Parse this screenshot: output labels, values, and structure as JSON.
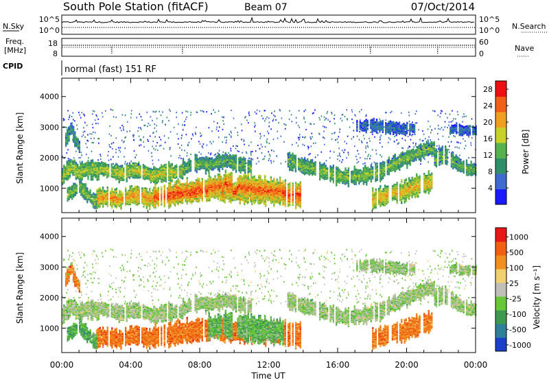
{
  "header": {
    "title": "South Pole Station (fitACF)",
    "beam": "Beam 07",
    "date": "07/Oct/2014"
  },
  "status_panels": {
    "nsky_label": "N.Sky",
    "nsearch_label": "N.Search",
    "freq_label_line1": "Freq.",
    "freq_label_line2": "[MHz]",
    "nave_label": "Nave",
    "cpid_label": "CPID",
    "cpid_text": "normal (fast) 151 RF",
    "noise_left_ticks": [
      "10^5",
      "10^0"
    ],
    "noise_right_ticks": [
      "10^5",
      "10^0"
    ],
    "freq_left_ticks": [
      "18",
      "8"
    ],
    "nave_right_ticks": [
      "60",
      "0"
    ]
  },
  "chart_data": [
    {
      "type": "heatmap",
      "name": "power",
      "ylabel": "Slant Range [km]",
      "xlabel": "Time UT",
      "xlim": [
        0,
        24
      ],
      "ylim": [
        200,
        4600
      ],
      "x_tick_labels": [
        "00:00",
        "04:00",
        "08:00",
        "12:00",
        "16:00",
        "20:00",
        "00:00"
      ],
      "y_tick_labels": [
        "1000",
        "2000",
        "3000",
        "4000"
      ],
      "colorbar": {
        "label": "Power [dB]",
        "tick_labels": [
          "4",
          "8",
          "12",
          "16",
          "20",
          "24",
          "28"
        ],
        "range": [
          0,
          30
        ],
        "colors": [
          "#1a1aff",
          "#3d6bd0",
          "#2f8f6a",
          "#55b24c",
          "#c8d02a",
          "#f0a020",
          "#f06018",
          "#ee1010"
        ]
      }
    },
    {
      "type": "heatmap",
      "name": "velocity",
      "ylabel": "Slant Range [km]",
      "xlabel": "Time UT",
      "xlim": [
        0,
        24
      ],
      "ylim": [
        200,
        4600
      ],
      "x_tick_labels": [
        "00:00",
        "04:00",
        "08:00",
        "12:00",
        "16:00",
        "20:00",
        "00:00"
      ],
      "y_tick_labels": [
        "1000",
        "2000",
        "3000",
        "4000"
      ],
      "colorbar": {
        "label": "Velocity [m s⁻¹]",
        "tick_labels": [
          "1000",
          "500",
          "100",
          "25",
          "-25",
          "-100",
          "-500",
          "-1000"
        ],
        "colors": [
          "#1a3fc8",
          "#2e7f9a",
          "#3c9a50",
          "#66c838",
          "#c0c0b8",
          "#f0d070",
          "#f09020",
          "#f06010",
          "#e81818"
        ]
      }
    }
  ],
  "echo_bands": [
    {
      "t0": 0.0,
      "t1": 2.5,
      "r": [
        1450,
        1750,
        1550,
        1650,
        1600,
        1700
      ],
      "w": 260,
      "pow": 0.55,
      "vel": 0.45
    },
    {
      "t0": 2.5,
      "t1": 7.0,
      "r": [
        1650,
        1500,
        1650,
        1450,
        1550,
        1600
      ],
      "w": 240,
      "pow": 0.6,
      "vel": 0.45
    },
    {
      "t0": 7.0,
      "t1": 11.0,
      "r": [
        1700,
        1850,
        1800,
        1950,
        1850,
        1700
      ],
      "w": 220,
      "pow": 0.45,
      "vel": 0.45
    },
    {
      "t0": 13.0,
      "t1": 18.5,
      "r": [
        1950,
        1750,
        1550,
        1400,
        1450,
        1550
      ],
      "w": 240,
      "pow": 0.5,
      "vel": 0.45
    },
    {
      "t0": 18.5,
      "t1": 21.6,
      "r": [
        1600,
        1800,
        1950,
        2100,
        2300,
        2350
      ],
      "w": 220,
      "pow": 0.5,
      "vel": 0.45
    },
    {
      "t0": 21.6,
      "t1": 24.0,
      "r": [
        2000,
        2150,
        1950,
        1800,
        1650,
        1650
      ],
      "w": 230,
      "pow": 0.45,
      "vel": 0.45
    },
    {
      "t0": 5.3,
      "t1": 13.8,
      "r": [
        750,
        900,
        1000,
        900,
        900,
        800
      ],
      "w": 330,
      "pow": 0.93,
      "vel": 0.82
    },
    {
      "t0": 2.0,
      "t1": 5.3,
      "r": [
        700,
        750,
        650,
        800,
        750,
        700
      ],
      "w": 260,
      "pow": 0.78,
      "vel": 0.82
    },
    {
      "t0": 8.5,
      "t1": 12.8,
      "r": [
        1050,
        1150,
        1100,
        1000,
        950,
        900
      ],
      "w": 360,
      "pow": 0.88,
      "vel": 0.35
    },
    {
      "t0": 18.0,
      "t1": 21.5,
      "r": [
        650,
        800,
        900,
        1000,
        1150,
        1250
      ],
      "w": 300,
      "pow": 0.7,
      "vel": 0.8
    },
    {
      "t0": 0.3,
      "t1": 2.0,
      "r": [
        800,
        950,
        1100,
        900,
        700,
        600
      ],
      "w": 200,
      "pow": 0.5,
      "vel": 0.3
    },
    {
      "t0": 17.0,
      "t1": 20.5,
      "r": [
        3050,
        3100,
        3050,
        3000,
        2950,
        3000
      ],
      "w": 170,
      "pow": 0.2,
      "vel": 0.45
    },
    {
      "t0": 22.5,
      "t1": 24.0,
      "r": [
        2950,
        3000,
        2950,
        2950,
        2900,
        2900
      ],
      "w": 140,
      "pow": 0.2,
      "vel": 0.45
    },
    {
      "t0": 0.2,
      "t1": 1.0,
      "r": [
        2600,
        2800,
        3000,
        2700,
        2500,
        2400
      ],
      "w": 200,
      "pow": 0.35,
      "vel": 0.8
    }
  ]
}
